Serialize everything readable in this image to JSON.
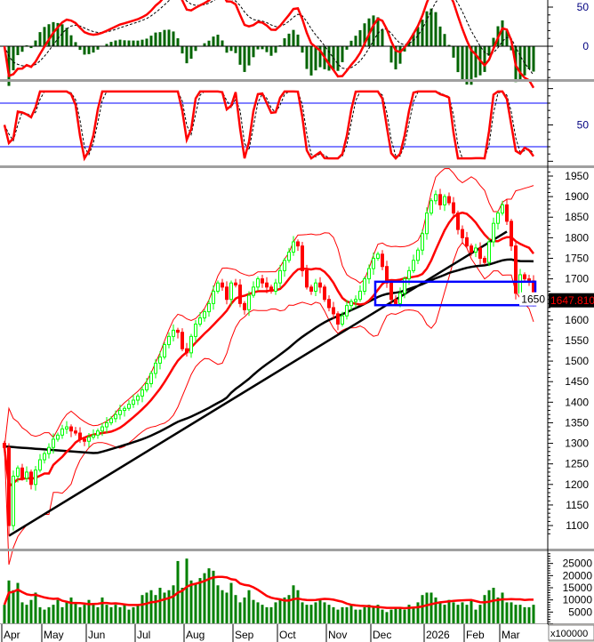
{
  "chart_data": [
    {
      "type": "candlestick",
      "panel": "price",
      "yticks": [
        1100,
        1150,
        1200,
        1250,
        1300,
        1350,
        1400,
        1450,
        1500,
        1550,
        1600,
        1650,
        1700,
        1750,
        1800,
        1850,
        1900,
        1950
      ],
      "ylim": [
        1040,
        1970
      ],
      "last_price_label": "1647.810",
      "close": [
        1290,
        1100,
        1220,
        1240,
        1215,
        1230,
        1200,
        1235,
        1260,
        1275,
        1290,
        1310,
        1320,
        1335,
        1340,
        1330,
        1325,
        1310,
        1305,
        1315,
        1320,
        1330,
        1340,
        1350,
        1360,
        1370,
        1380,
        1385,
        1395,
        1405,
        1415,
        1430,
        1445,
        1470,
        1495,
        1510,
        1540,
        1560,
        1575,
        1570,
        1530,
        1520,
        1560,
        1590,
        1605,
        1620,
        1640,
        1670,
        1690,
        1680,
        1650,
        1690,
        1685,
        1640,
        1625,
        1660,
        1680,
        1700,
        1690,
        1680,
        1670,
        1690,
        1720,
        1745,
        1765,
        1790,
        1780,
        1720,
        1680,
        1670,
        1690,
        1680,
        1650,
        1630,
        1615,
        1590,
        1610,
        1635,
        1645,
        1650,
        1670,
        1700,
        1725,
        1750,
        1760,
        1730,
        1690,
        1650,
        1640,
        1665,
        1700,
        1720,
        1745,
        1770,
        1810,
        1860,
        1890,
        1905,
        1880,
        1900,
        1885,
        1860,
        1820,
        1800,
        1780,
        1765,
        1775,
        1750,
        1740,
        1790,
        1835,
        1860,
        1880,
        1840,
        1780,
        1665,
        1710,
        1700,
        1695,
        1647.81
      ],
      "overlays": [
        "bollinger-bands",
        "moving-average-short",
        "moving-average-long",
        "trendline",
        "support-box"
      ],
      "trendline": {
        "start_price": 1075,
        "end_price": 1815
      },
      "support_box": {
        "price_top": 1693,
        "price_bottom": 1636
      },
      "colors": {
        "up": "#00ff00",
        "down": "#ff0000",
        "ma_short": "#ff0000",
        "ma_long": "#000000",
        "bands": "#ff0000",
        "trendline": "#000000",
        "box": "#0000ff",
        "price_label_bg": "#000000",
        "price_label_text": "#ff0000"
      }
    },
    {
      "type": "bar",
      "panel": "volume",
      "yticks": [
        5000,
        10000,
        15000,
        20000,
        25000
      ],
      "multiplier_label": "x100000",
      "values": [
        8000,
        18000,
        14000,
        17000,
        9000,
        8000,
        10000,
        13000,
        7000,
        6000,
        7000,
        8000,
        10000,
        7000,
        9000,
        11000,
        9000,
        7000,
        8000,
        10000,
        8000,
        7000,
        11000,
        8000,
        7000,
        8000,
        7000,
        8000,
        6000,
        7000,
        8000,
        12000,
        13000,
        14000,
        12000,
        15000,
        13000,
        14000,
        16000,
        26000,
        15000,
        27000,
        18000,
        17000,
        19000,
        21000,
        23000,
        22000,
        16000,
        14000,
        13000,
        17000,
        12000,
        9000,
        11000,
        14000,
        10000,
        9000,
        8000,
        7000,
        7000,
        9000,
        10000,
        11000,
        12000,
        16000,
        14000,
        9000,
        8000,
        8000,
        9000,
        10000,
        9000,
        8000,
        7000,
        6000,
        7000,
        7000,
        8000,
        6000,
        6000,
        7000,
        8000,
        7000,
        8000,
        6000,
        5000,
        6000,
        7000,
        7000,
        6000,
        8000,
        7000,
        9000,
        12000,
        13000,
        13000,
        11000,
        9000,
        8000,
        10000,
        9000,
        8000,
        9000,
        8000,
        10000,
        6000,
        8000,
        12000,
        14000,
        15000,
        11000,
        13000,
        9000,
        9000,
        8000,
        8000,
        7000,
        7000,
        8000
      ],
      "colors": {
        "bar": "#008000",
        "ma": "#ff0000"
      }
    },
    {
      "type": "line",
      "panel": "macd",
      "yticks": [
        0,
        50
      ],
      "colors": {
        "macd": "#ff0000",
        "signal": "#000000",
        "histogram": "#006400"
      }
    },
    {
      "type": "line",
      "panel": "stochastic",
      "yticks": [
        50
      ],
      "levels": [
        20,
        80
      ],
      "colors": {
        "k": "#ff0000",
        "d": "#000000",
        "levels": "#0000ff"
      }
    }
  ],
  "x_axis": {
    "months": [
      {
        "label": "Apr",
        "bar": 0
      },
      {
        "label": "May",
        "bar": 9
      },
      {
        "label": "Jun",
        "bar": 19
      },
      {
        "label": "Jul",
        "bar": 30
      },
      {
        "label": "Aug",
        "bar": 41
      },
      {
        "label": "Sep",
        "bar": 52
      },
      {
        "label": "Oct",
        "bar": 62
      },
      {
        "label": "Nov",
        "bar": 73
      },
      {
        "label": "Dec",
        "bar": 83
      },
      {
        "label": "2026",
        "bar": 95
      },
      {
        "label": "Feb",
        "bar": 104
      },
      {
        "label": "Mar",
        "bar": 112
      }
    ]
  }
}
